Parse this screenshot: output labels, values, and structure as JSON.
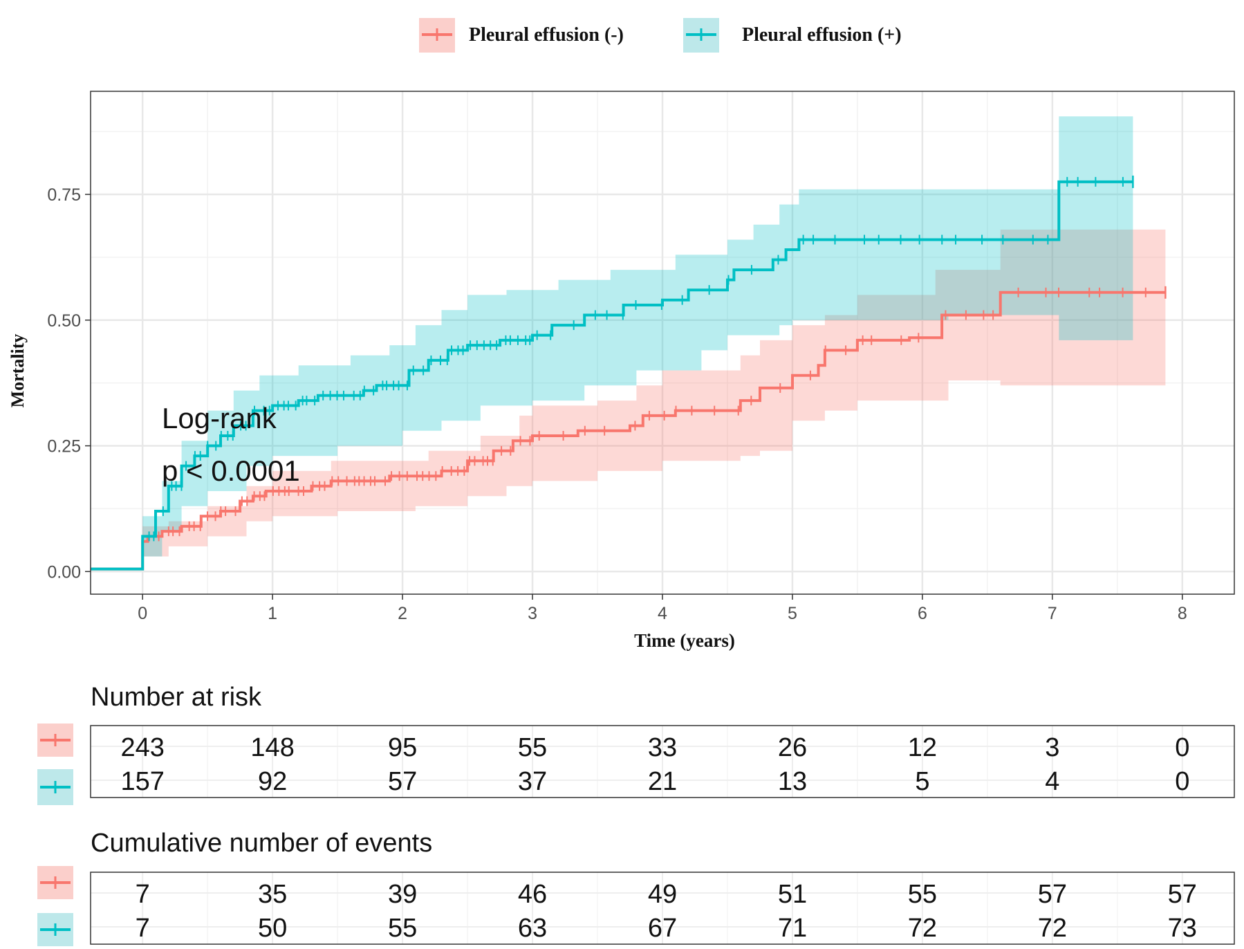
{
  "chart_data": {
    "type": "line",
    "subtype": "kaplan-meier cumulative mortality",
    "xlabel": "Time (years)",
    "ylabel": "Mortality",
    "xlim": [
      -0.4,
      8.4
    ],
    "ylim": [
      -0.045,
      0.955
    ],
    "x_ticks": [
      "0",
      "1",
      "2",
      "3",
      "4",
      "5",
      "6",
      "7",
      "8"
    ],
    "y_ticks": [
      "0.00",
      "0.25",
      "0.50",
      "0.75"
    ],
    "grid": true,
    "legend_position": "top",
    "annotation": {
      "line1": "Log-rank",
      "line2": "p < 0.0001"
    },
    "series": [
      {
        "name": "Pleural effusion (-)",
        "color": "#F8766D",
        "fill": "#FBCFCB",
        "steps": [
          [
            -0.4,
            0.005
          ],
          [
            0,
            0.005
          ],
          [
            0,
            0.06
          ],
          [
            0.04,
            0.07
          ],
          [
            0.15,
            0.08
          ],
          [
            0.3,
            0.09
          ],
          [
            0.45,
            0.11
          ],
          [
            0.6,
            0.12
          ],
          [
            0.75,
            0.14
          ],
          [
            0.85,
            0.15
          ],
          [
            0.95,
            0.16
          ],
          [
            1.3,
            0.17
          ],
          [
            1.45,
            0.18
          ],
          [
            1.9,
            0.19
          ],
          [
            2.3,
            0.2
          ],
          [
            2.5,
            0.22
          ],
          [
            2.7,
            0.24
          ],
          [
            2.85,
            0.26
          ],
          [
            3.0,
            0.27
          ],
          [
            3.35,
            0.28
          ],
          [
            3.75,
            0.29
          ],
          [
            3.85,
            0.31
          ],
          [
            4.1,
            0.32
          ],
          [
            4.6,
            0.34
          ],
          [
            4.75,
            0.365
          ],
          [
            5.0,
            0.39
          ],
          [
            5.2,
            0.41
          ],
          [
            5.25,
            0.44
          ],
          [
            5.5,
            0.46
          ],
          [
            5.9,
            0.465
          ],
          [
            6.15,
            0.51
          ],
          [
            6.6,
            0.555
          ],
          [
            7.87,
            0.555
          ]
        ],
        "lower": [
          [
            -0.4,
            0.005
          ],
          [
            0,
            0.005
          ],
          [
            0,
            0.03
          ],
          [
            0.2,
            0.05
          ],
          [
            0.5,
            0.07
          ],
          [
            0.8,
            0.1
          ],
          [
            1.0,
            0.11
          ],
          [
            1.5,
            0.12
          ],
          [
            2.1,
            0.13
          ],
          [
            2.5,
            0.15
          ],
          [
            2.8,
            0.17
          ],
          [
            3.0,
            0.18
          ],
          [
            3.5,
            0.2
          ],
          [
            4.0,
            0.22
          ],
          [
            4.6,
            0.23
          ],
          [
            4.75,
            0.24
          ],
          [
            5.0,
            0.3
          ],
          [
            5.25,
            0.32
          ],
          [
            5.5,
            0.34
          ],
          [
            6.2,
            0.38
          ],
          [
            6.6,
            0.37
          ],
          [
            7.87,
            0.37
          ]
        ],
        "upper": [
          [
            -0.4,
            0.005
          ],
          [
            0,
            0.005
          ],
          [
            0,
            0.09
          ],
          [
            0.2,
            0.1
          ],
          [
            0.5,
            0.13
          ],
          [
            0.8,
            0.17
          ],
          [
            1.0,
            0.2
          ],
          [
            1.45,
            0.22
          ],
          [
            2.2,
            0.24
          ],
          [
            2.6,
            0.27
          ],
          [
            2.9,
            0.31
          ],
          [
            3.0,
            0.33
          ],
          [
            3.5,
            0.34
          ],
          [
            3.8,
            0.37
          ],
          [
            4.0,
            0.4
          ],
          [
            4.6,
            0.43
          ],
          [
            4.75,
            0.46
          ],
          [
            5.0,
            0.49
          ],
          [
            5.25,
            0.51
          ],
          [
            5.5,
            0.55
          ],
          [
            6.1,
            0.6
          ],
          [
            6.6,
            0.68
          ],
          [
            7.87,
            0.68
          ]
        ]
      },
      {
        "name": "Pleural effusion (+)",
        "color": "#00BFC4",
        "fill": "#BDE8EA",
        "steps": [
          [
            -0.4,
            0.005
          ],
          [
            0,
            0.005
          ],
          [
            0,
            0.07
          ],
          [
            0.1,
            0.12
          ],
          [
            0.2,
            0.17
          ],
          [
            0.3,
            0.21
          ],
          [
            0.4,
            0.23
          ],
          [
            0.5,
            0.25
          ],
          [
            0.6,
            0.27
          ],
          [
            0.7,
            0.29
          ],
          [
            0.85,
            0.32
          ],
          [
            1.0,
            0.33
          ],
          [
            1.2,
            0.34
          ],
          [
            1.35,
            0.35
          ],
          [
            1.7,
            0.36
          ],
          [
            1.8,
            0.37
          ],
          [
            2.05,
            0.4
          ],
          [
            2.2,
            0.42
          ],
          [
            2.35,
            0.44
          ],
          [
            2.5,
            0.45
          ],
          [
            2.75,
            0.46
          ],
          [
            3.0,
            0.47
          ],
          [
            3.15,
            0.49
          ],
          [
            3.4,
            0.51
          ],
          [
            3.7,
            0.53
          ],
          [
            4.0,
            0.54
          ],
          [
            4.2,
            0.56
          ],
          [
            4.5,
            0.58
          ],
          [
            4.55,
            0.6
          ],
          [
            4.85,
            0.62
          ],
          [
            4.95,
            0.64
          ],
          [
            5.05,
            0.66
          ],
          [
            7.05,
            0.66
          ],
          [
            7.05,
            0.775
          ],
          [
            7.62,
            0.775
          ]
        ],
        "lower": [
          [
            -0.4,
            0.005
          ],
          [
            0,
            0.005
          ],
          [
            0,
            0.03
          ],
          [
            0.15,
            0.08
          ],
          [
            0.3,
            0.13
          ],
          [
            0.5,
            0.16
          ],
          [
            0.8,
            0.21
          ],
          [
            1.0,
            0.23
          ],
          [
            1.5,
            0.25
          ],
          [
            2.0,
            0.28
          ],
          [
            2.3,
            0.3
          ],
          [
            2.6,
            0.33
          ],
          [
            3.0,
            0.34
          ],
          [
            3.4,
            0.37
          ],
          [
            3.8,
            0.4
          ],
          [
            4.3,
            0.44
          ],
          [
            4.5,
            0.47
          ],
          [
            4.9,
            0.49
          ],
          [
            5.0,
            0.5
          ],
          [
            6.2,
            0.51
          ],
          [
            7.05,
            0.46
          ],
          [
            7.62,
            0.46
          ]
        ],
        "upper": [
          [
            -0.4,
            0.005
          ],
          [
            0,
            0.005
          ],
          [
            0,
            0.11
          ],
          [
            0.15,
            0.18
          ],
          [
            0.3,
            0.26
          ],
          [
            0.5,
            0.32
          ],
          [
            0.7,
            0.36
          ],
          [
            0.9,
            0.39
          ],
          [
            1.2,
            0.41
          ],
          [
            1.6,
            0.43
          ],
          [
            1.9,
            0.45
          ],
          [
            2.1,
            0.49
          ],
          [
            2.3,
            0.52
          ],
          [
            2.5,
            0.55
          ],
          [
            2.8,
            0.56
          ],
          [
            3.2,
            0.58
          ],
          [
            3.6,
            0.6
          ],
          [
            4.1,
            0.63
          ],
          [
            4.5,
            0.66
          ],
          [
            4.7,
            0.69
          ],
          [
            4.9,
            0.73
          ],
          [
            5.05,
            0.76
          ],
          [
            7.05,
            0.76
          ],
          [
            7.05,
            0.905
          ],
          [
            7.62,
            0.905
          ]
        ]
      }
    ],
    "risk_table": {
      "title": "Number at risk",
      "rows": [
        {
          "series": "Pleural effusion (-)",
          "values": [
            "243",
            "148",
            "95",
            "55",
            "33",
            "26",
            "12",
            "3",
            "0"
          ]
        },
        {
          "series": "Pleural effusion (+)",
          "values": [
            "157",
            "92",
            "57",
            "37",
            "21",
            "13",
            "5",
            "4",
            "0"
          ]
        }
      ]
    },
    "events_table": {
      "title": "Cumulative number of events",
      "rows": [
        {
          "series": "Pleural effusion (-)",
          "values": [
            "7",
            "35",
            "39",
            "46",
            "49",
            "51",
            "55",
            "57",
            "57"
          ]
        },
        {
          "series": "Pleural effusion (+)",
          "values": [
            "7",
            "50",
            "55",
            "63",
            "67",
            "71",
            "72",
            "72",
            "73"
          ]
        }
      ]
    }
  }
}
